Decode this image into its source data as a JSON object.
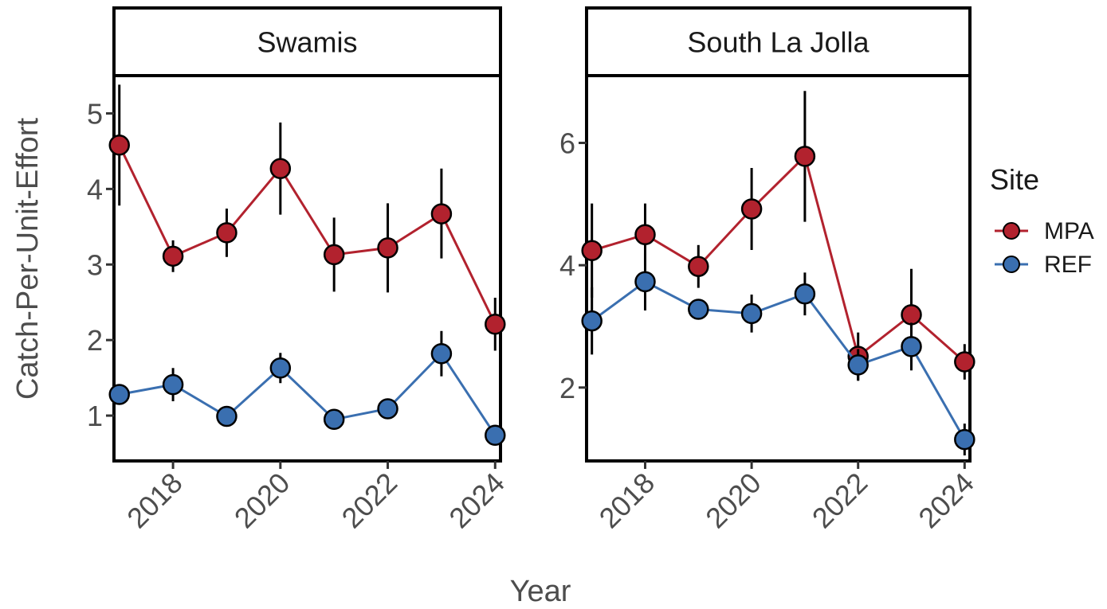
{
  "chart_data": {
    "type": "line",
    "xlabel": "Year",
    "ylabel": "Catch-Per-Unit-Effort",
    "legend": {
      "title": "Site",
      "position": "right",
      "entries": [
        {
          "name": "MPA",
          "color": "#b2222e"
        },
        {
          "name": "REF",
          "color": "#3a6fb0"
        }
      ]
    },
    "x_ticks": [
      2018,
      2020,
      2022,
      2024
    ],
    "panels": [
      {
        "strip": "Swamis",
        "xlim": [
          2016.9,
          2024.1
        ],
        "ylim": [
          0.4,
          5.5
        ],
        "y_ticks": [
          1,
          2,
          3,
          4,
          5
        ],
        "series": [
          {
            "name": "MPA",
            "x": [
              2017,
              2018,
              2019,
              2020,
              2021,
              2022,
              2023,
              2024
            ],
            "values": [
              4.58,
              3.11,
              3.42,
              4.27,
              3.13,
              3.22,
              3.67,
              2.21
            ],
            "lower": [
              3.78,
              2.9,
              3.1,
              3.66,
              2.64,
              2.63,
              3.08,
              1.86
            ],
            "upper": [
              5.38,
              3.32,
              3.74,
              4.88,
              3.62,
              3.81,
              4.27,
              2.56
            ]
          },
          {
            "name": "REF",
            "x": [
              2017,
              2018,
              2019,
              2020,
              2021,
              2022,
              2023,
              2024
            ],
            "values": [
              1.28,
              1.41,
              0.99,
              1.63,
              0.95,
              1.09,
              1.82,
              0.74
            ],
            "lower": [
              1.16,
              1.19,
              0.87,
              1.43,
              0.85,
              0.97,
              1.52,
              0.64
            ],
            "upper": [
              1.4,
              1.63,
              1.11,
              1.83,
              1.05,
              1.21,
              2.12,
              0.84
            ]
          }
        ]
      },
      {
        "strip": "South La Jolla",
        "xlim": [
          2016.9,
          2024.1
        ],
        "ylim": [
          0.8,
          7.1
        ],
        "y_ticks": [
          2,
          4,
          6
        ],
        "series": [
          {
            "name": "MPA",
            "x": [
              2017,
              2018,
              2019,
              2020,
              2021,
              2022,
              2023,
              2024
            ],
            "values": [
              4.24,
              4.5,
              3.98,
              4.92,
              5.78,
              2.51,
              3.19,
              2.42
            ],
            "lower": [
              3.47,
              3.99,
              3.63,
              4.25,
              4.71,
              2.12,
              2.44,
              2.13
            ],
            "upper": [
              5.01,
              5.01,
              4.33,
              5.59,
              6.85,
              2.9,
              3.94,
              2.71
            ]
          },
          {
            "name": "REF",
            "x": [
              2017,
              2018,
              2019,
              2020,
              2021,
              2022,
              2023,
              2024
            ],
            "values": [
              3.09,
              3.73,
              3.28,
              3.21,
              3.53,
              2.37,
              2.67,
              1.15
            ],
            "lower": [
              2.54,
              3.26,
              3.13,
              2.9,
              3.18,
              2.11,
              2.28,
              0.89
            ],
            "upper": [
              3.64,
              4.2,
              3.43,
              3.52,
              3.88,
              2.63,
              3.06,
              1.41
            ]
          }
        ]
      }
    ]
  }
}
